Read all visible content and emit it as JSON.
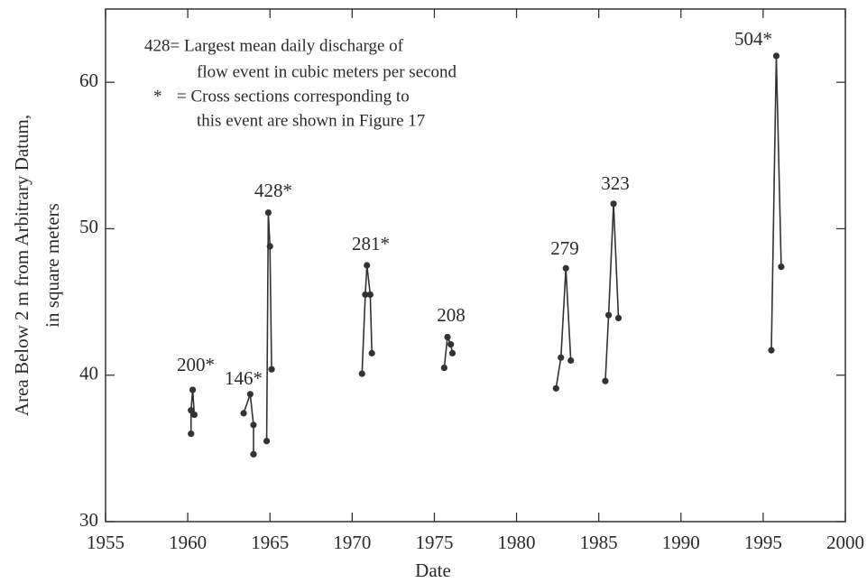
{
  "chart_data": {
    "type": "line",
    "xlabel": "Date",
    "ylabel": [
      "Area Below 2 m from Arbitrary Datum,",
      "in square meters"
    ],
    "notes": [
      "428= Largest mean daily discharge of",
      "flow event in cubic meters per second",
      "*",
      "= Cross sections corresponding to",
      "this event are shown in Figure 17"
    ],
    "xlim": [
      1955,
      2000
    ],
    "xticks": [
      1955,
      1960,
      1965,
      1970,
      1975,
      1980,
      1985,
      1990,
      1995,
      2000
    ],
    "ylim": [
      30,
      65
    ],
    "yticks": [
      30,
      40,
      50,
      60
    ],
    "color": "#333333",
    "series": [
      {
        "label": "200*",
        "x": [
          1960.2,
          1960.2,
          1960.3,
          1960.4
        ],
        "values": [
          36.0,
          37.6,
          39.0,
          37.3
        ]
      },
      {
        "label": "146*",
        "x": [
          1963.4,
          1963.8,
          1964.0,
          1964.0
        ],
        "values": [
          37.4,
          38.7,
          36.6,
          34.6
        ]
      },
      {
        "label": "428*",
        "x": [
          1964.8,
          1964.9,
          1965.0,
          1965.1
        ],
        "values": [
          35.5,
          51.1,
          48.8,
          40.4
        ]
      },
      {
        "label": "281*",
        "x": [
          1970.6,
          1970.8,
          1970.9,
          1971.1,
          1971.2
        ],
        "values": [
          40.1,
          45.5,
          47.5,
          45.5,
          41.5
        ]
      },
      {
        "label": "208",
        "x": [
          1975.6,
          1975.8,
          1976.0,
          1976.1
        ],
        "values": [
          40.5,
          42.6,
          42.1,
          41.5
        ]
      },
      {
        "label": "279",
        "x": [
          1982.4,
          1982.7,
          1983.0,
          1983.3
        ],
        "values": [
          39.1,
          41.2,
          47.3,
          41.0
        ]
      },
      {
        "label": "323",
        "x": [
          1985.4,
          1985.6,
          1985.9,
          1986.2
        ],
        "values": [
          39.6,
          44.1,
          51.7,
          43.9
        ]
      },
      {
        "label": "504*",
        "x": [
          1995.5,
          1995.8,
          1996.1
        ],
        "values": [
          41.7,
          61.8,
          47.4
        ]
      }
    ]
  }
}
